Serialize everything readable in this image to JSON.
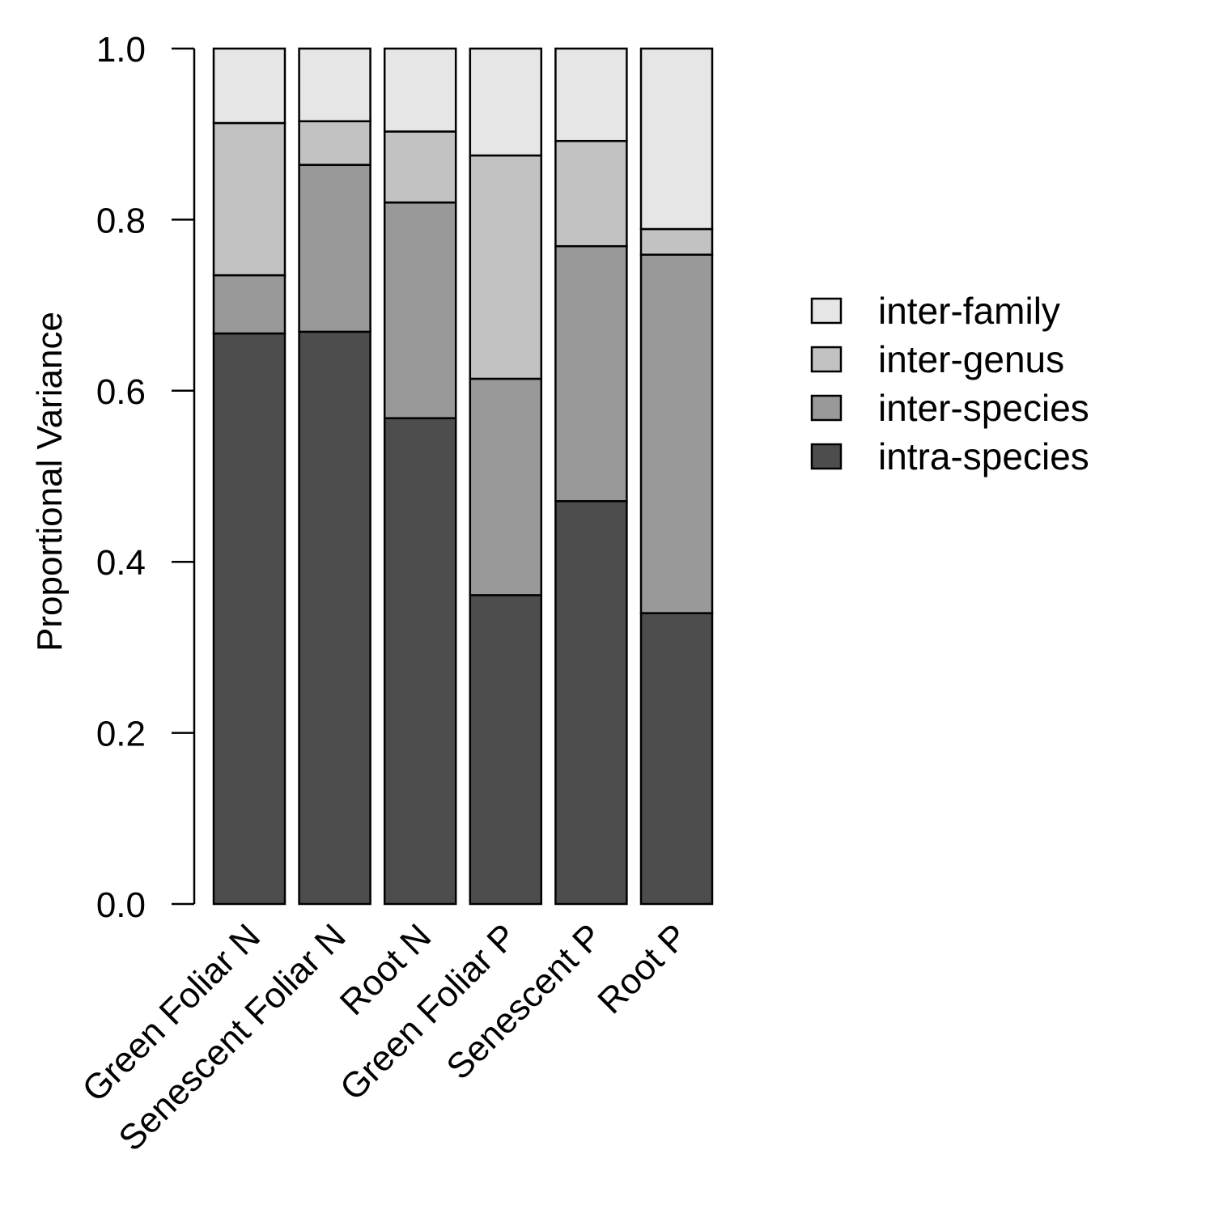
{
  "chart_data": {
    "type": "bar",
    "stacked": true,
    "title": "",
    "xlabel": "",
    "ylabel": "Proportional Variance",
    "ylim": [
      0,
      1
    ],
    "yticks": [
      0,
      0.2,
      0.4,
      0.6,
      0.8,
      1
    ],
    "ytick_labels": [
      "0.0",
      "0.2",
      "0.4",
      "0.6",
      "0.8",
      "1.0"
    ],
    "grid": false,
    "legend_position": "right",
    "categories": [
      "Green Foliar N",
      "Senescent Foliar N",
      "Root N",
      "Green Foliar P",
      "Senescent P",
      "Root P"
    ],
    "series": [
      {
        "name": "intra-species",
        "color": "#4d4d4d",
        "values": [
          0.667,
          0.669,
          0.568,
          0.361,
          0.471,
          0.34
        ]
      },
      {
        "name": "inter-species",
        "color": "#999999",
        "values": [
          0.068,
          0.195,
          0.252,
          0.253,
          0.298,
          0.419
        ]
      },
      {
        "name": "inter-genus",
        "color": "#c2c2c2",
        "values": [
          0.178,
          0.051,
          0.083,
          0.261,
          0.123,
          0.03
        ]
      },
      {
        "name": "inter-family",
        "color": "#e6e6e6",
        "values": [
          0.087,
          0.085,
          0.097,
          0.125,
          0.108,
          0.211
        ]
      }
    ],
    "legend_order": [
      "inter-family",
      "inter-genus",
      "inter-species",
      "intra-species"
    ]
  }
}
